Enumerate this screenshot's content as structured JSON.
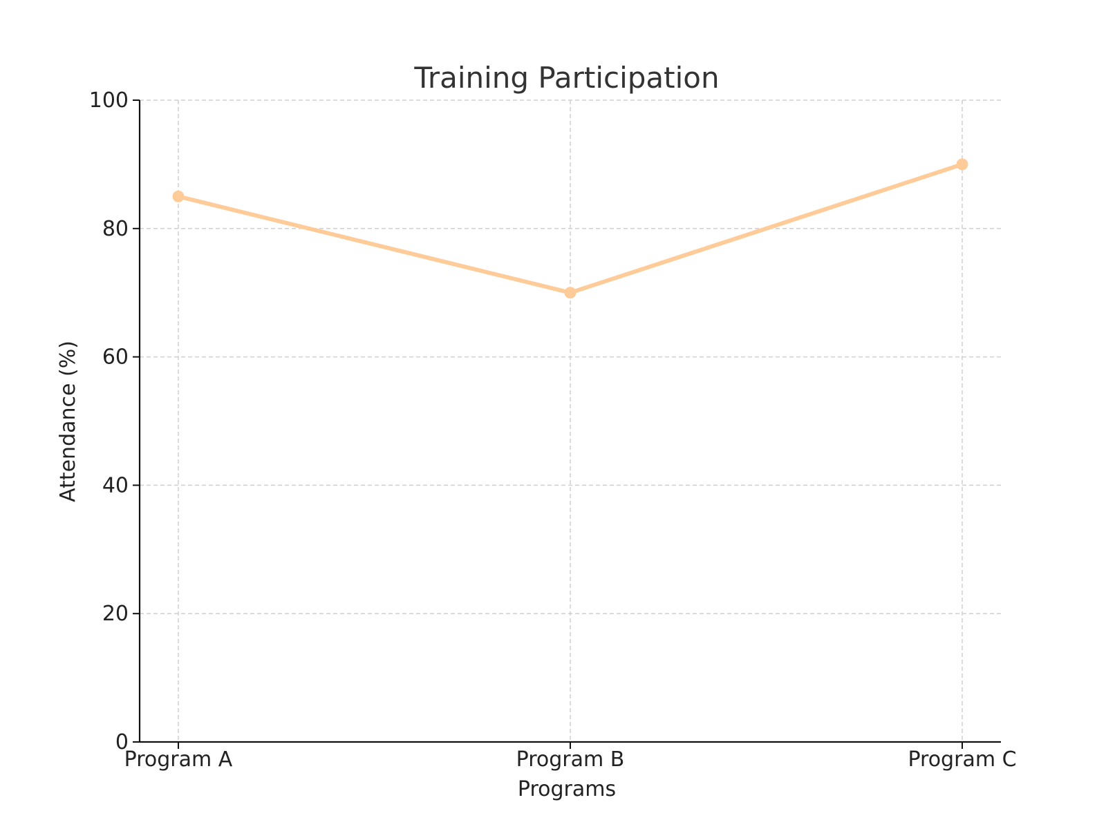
{
  "chart_data": {
    "type": "line",
    "title": "Training Participation",
    "xlabel": "Programs",
    "ylabel": "Attendance (%)",
    "categories": [
      "Program A",
      "Program B",
      "Program C"
    ],
    "series": [
      {
        "values": [
          85,
          70,
          90
        ],
        "color": "#ffcc99"
      }
    ],
    "ylim": [
      0,
      100
    ],
    "yticks": [
      0,
      20,
      40,
      60,
      80,
      100
    ],
    "ytick_labels": [
      "0",
      "20",
      "40",
      "60",
      "80",
      "100"
    ],
    "grid": true,
    "grid_style": "dashed",
    "axis_color": "#111111",
    "grid_color": "#cfcfcf"
  }
}
